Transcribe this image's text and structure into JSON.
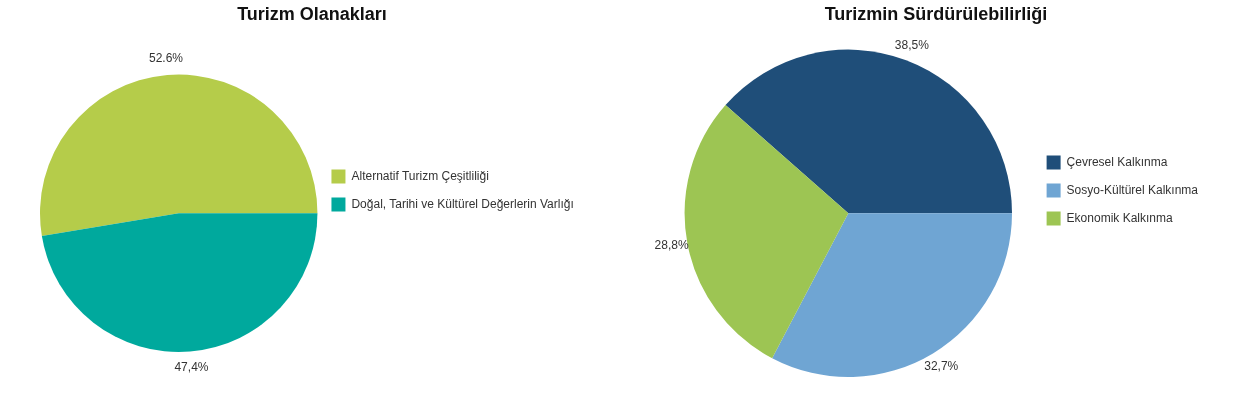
{
  "chart_data": [
    {
      "type": "pie",
      "title": "Turizm Olanakları",
      "categories": [
        "Alternatif Turizm Çeşitliliği",
        "Doğal, Tarihi ve Kültürel Değerlerin Varlığı"
      ],
      "values": [
        52.6,
        47.4
      ],
      "colors": [
        "#b5cc4a",
        "#00a99d"
      ],
      "value_labels": [
        "52.6%",
        "47,4%"
      ],
      "legend": "right"
    },
    {
      "type": "pie",
      "title": "Turizmin Sürdürülebilirliği",
      "categories": [
        "Çevresel Kalkınma",
        "Sosyo-Kültürel Kalkınma",
        "Ekonomik Kalkınma"
      ],
      "values": [
        38.5,
        32.7,
        28.8
      ],
      "colors": [
        "#1f4e79",
        "#6fa5d3",
        "#9dc553"
      ],
      "value_labels": [
        "38,5%",
        "32,7%",
        "28,8%"
      ],
      "legend": "right"
    }
  ]
}
